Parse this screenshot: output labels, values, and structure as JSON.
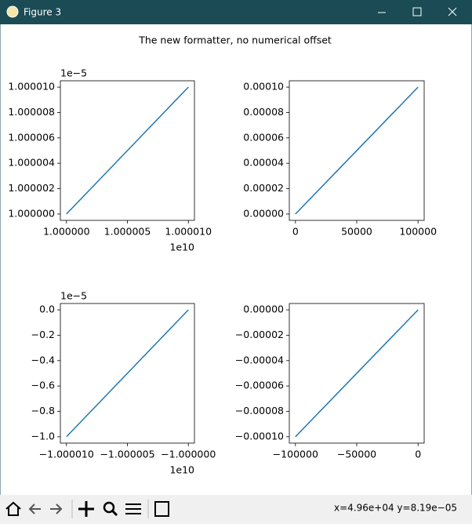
{
  "window": {
    "title": "Figure 3",
    "status": "x=4.96e+04 y=8.19e−05"
  },
  "suptitle": "The new formatter, no numerical offset",
  "chart_data": [
    {
      "type": "line",
      "x_offset_label": "1e10",
      "y_offset_label": "1e−5",
      "xlim": [
        0.9999995,
        1.0000105
      ],
      "ylim": [
        0.9999995,
        1.0000105
      ],
      "xticks": [
        {
          "value": 1.0,
          "label": "1.000000"
        },
        {
          "value": 1.000005,
          "label": "1.000005"
        },
        {
          "value": 1.00001,
          "label": "1.000010"
        }
      ],
      "yticks": [
        {
          "value": 1.0,
          "label": "1.000000"
        },
        {
          "value": 1.000002,
          "label": "1.000002"
        },
        {
          "value": 1.000004,
          "label": "1.000004"
        },
        {
          "value": 1.000006,
          "label": "1.000006"
        },
        {
          "value": 1.000008,
          "label": "1.000008"
        },
        {
          "value": 1.00001,
          "label": "1.000010"
        }
      ],
      "x": [
        1.0,
        1.00001
      ],
      "series": [
        {
          "color": "#1f77b4",
          "values": [
            1.0,
            1.00001
          ]
        }
      ]
    },
    {
      "type": "line",
      "xlim": [
        -5000,
        105000
      ],
      "ylim": [
        -5e-06,
        0.000105
      ],
      "xticks": [
        0,
        50000,
        100000
      ],
      "yticks": [
        {
          "value": 0,
          "label": "0.00000"
        },
        {
          "value": 2e-05,
          "label": "0.00002"
        },
        {
          "value": 4e-05,
          "label": "0.00004"
        },
        {
          "value": 6e-05,
          "label": "0.00006"
        },
        {
          "value": 8e-05,
          "label": "0.00008"
        },
        {
          "value": 0.0001,
          "label": "0.00010"
        }
      ],
      "x": [
        0,
        100000
      ],
      "series": [
        {
          "color": "#1f77b4",
          "values": [
            0,
            0.0001
          ]
        }
      ]
    },
    {
      "type": "line",
      "x_offset_label": "1e10",
      "y_offset_label": "1e−5",
      "xlim": [
        -1.0000105,
        -0.9999995
      ],
      "ylim": [
        -1.05,
        0.05
      ],
      "xticks": [
        {
          "value": -1.00001,
          "label": "−1.000010"
        },
        {
          "value": -1.000005,
          "label": "−1.000005"
        },
        {
          "value": -1.0,
          "label": "−1.000000"
        }
      ],
      "yticks": [
        {
          "value": 0,
          "label": "0.0"
        },
        {
          "value": -0.2,
          "label": "−0.2"
        },
        {
          "value": -0.4,
          "label": "−0.4"
        },
        {
          "value": -0.6,
          "label": "−0.6"
        },
        {
          "value": -0.8,
          "label": "−0.8"
        },
        {
          "value": -1.0,
          "label": "−1.0"
        }
      ],
      "x": [
        -1.00001,
        -1.0
      ],
      "series": [
        {
          "color": "#1f77b4",
          "values": [
            -1.0,
            0
          ]
        }
      ]
    },
    {
      "type": "line",
      "xlim": [
        -105000,
        5000
      ],
      "ylim": [
        -0.000105,
        5e-06
      ],
      "xticks": [
        {
          "value": -100000,
          "label": "−100000"
        },
        {
          "value": -50000,
          "label": "−50000"
        },
        0
      ],
      "yticks": [
        {
          "value": 0,
          "label": "0.00000"
        },
        {
          "value": -2e-05,
          "label": "−0.00002"
        },
        {
          "value": -4e-05,
          "label": "−0.00004"
        },
        {
          "value": -6e-05,
          "label": "−0.00006"
        },
        {
          "value": -8e-05,
          "label": "−0.00008"
        },
        {
          "value": -0.0001,
          "label": "−0.00010"
        }
      ],
      "x": [
        -100000,
        0
      ],
      "series": [
        {
          "color": "#1f77b4",
          "values": [
            -0.0001,
            0
          ]
        }
      ]
    }
  ]
}
